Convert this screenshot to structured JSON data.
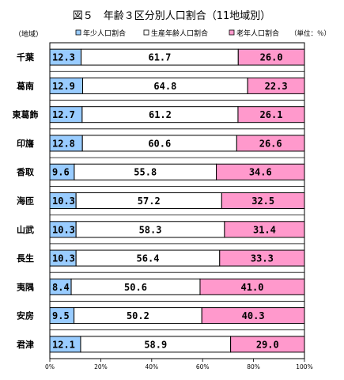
{
  "chart_data": {
    "type": "bar",
    "stacked": true,
    "orientation": "horizontal",
    "title": "図５　年齢３区分別人口割合（11地域別）",
    "unit_label": "（単位：％）",
    "category_axis_label": "（地域）",
    "categories": [
      "千葉",
      "葛南",
      "東葛飾",
      "印旛",
      "香取",
      "海匝",
      "山武",
      "長生",
      "夷隅",
      "安房",
      "君津"
    ],
    "series": [
      {
        "name": "年少人口割合",
        "color": "#99ccff",
        "values": [
          12.3,
          12.9,
          12.7,
          12.8,
          9.6,
          10.3,
          10.3,
          10.3,
          8.4,
          9.5,
          12.1
        ]
      },
      {
        "name": "生産年齢人口割合",
        "color": "#ffffff",
        "values": [
          61.7,
          64.8,
          61.2,
          60.6,
          55.8,
          57.2,
          58.3,
          56.4,
          50.6,
          50.2,
          58.9
        ]
      },
      {
        "name": "老年人口割合",
        "color": "#ff99cc",
        "values": [
          26.0,
          22.3,
          26.1,
          26.6,
          34.6,
          32.5,
          31.4,
          33.3,
          41.0,
          40.3,
          29.0
        ]
      }
    ],
    "value_labels": [
      [
        "12.3",
        "61.7",
        "26.0"
      ],
      [
        "12.9",
        "64.8",
        "22.3"
      ],
      [
        "12.7",
        "61.2",
        "26.1"
      ],
      [
        "12.8",
        "60.6",
        "26.6"
      ],
      [
        "9.6",
        "55.8",
        "34.6"
      ],
      [
        "10.3",
        "57.2",
        "32.5"
      ],
      [
        "10.3",
        "58.3",
        "31.4"
      ],
      [
        "10.3",
        "56.4",
        "33.3"
      ],
      [
        "8.4",
        "50.6",
        "41.0"
      ],
      [
        "9.5",
        "50.2",
        "40.3"
      ],
      [
        "12.1",
        "58.9",
        "29.0"
      ]
    ],
    "xlim": [
      0,
      100
    ],
    "xticks": [
      "0%",
      "20%",
      "40%",
      "60%",
      "80%",
      "100%"
    ],
    "grid": true,
    "legend_position": "top"
  }
}
